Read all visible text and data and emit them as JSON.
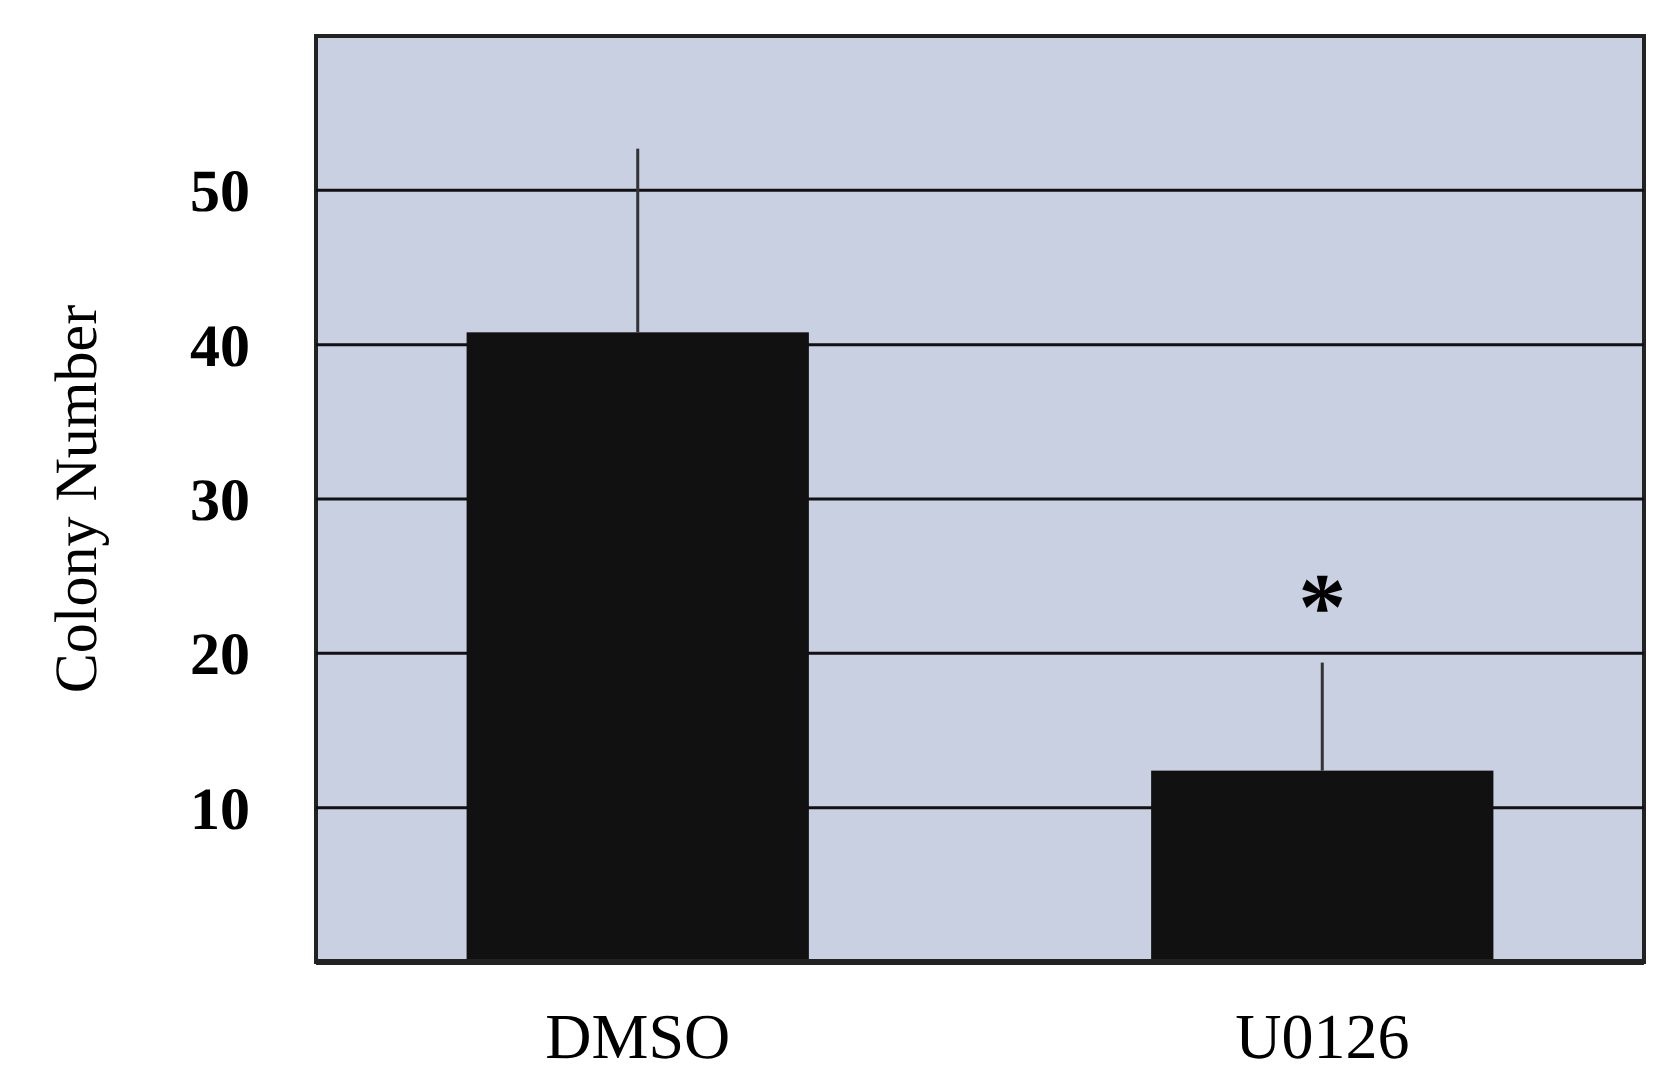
{
  "chart_data": {
    "type": "bar",
    "ylabel": "Colony Number",
    "categories": [
      "DMSO",
      "U0126"
    ],
    "values": [
      40.8,
      12.4
    ],
    "color": "#111111",
    "errors": [
      [
        40.8,
        52.7
      ],
      [
        12.4,
        19.4
      ]
    ],
    "ylim": [
      0,
      60
    ],
    "yticks": [
      10,
      20,
      30,
      40,
      50
    ],
    "grid": "y",
    "annotations": [
      "*"
    ]
  }
}
